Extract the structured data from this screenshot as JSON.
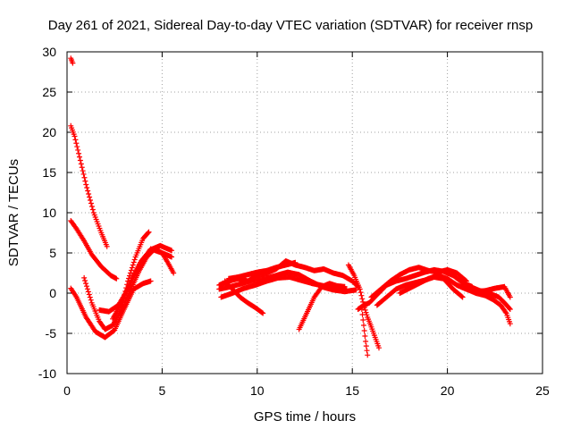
{
  "chart_data": {
    "type": "scatter",
    "title": "Day 261 of 2021, Sidereal Day-to-day VTEC variation (SDTVAR) for receiver rnsp",
    "xlabel": "GPS time / hours",
    "ylabel": "SDTVAR / TECUs",
    "xlim": [
      0,
      25
    ],
    "ylim": [
      -10,
      30
    ],
    "xticks": [
      0,
      5,
      10,
      15,
      20,
      25
    ],
    "yticks": [
      -10,
      -5,
      0,
      5,
      10,
      15,
      20,
      25,
      30
    ],
    "grid": true,
    "marker": "+",
    "color": "#ff0000",
    "series": [
      {
        "name": "s1",
        "x": [
          0.2,
          0.3
        ],
        "y": [
          29.2,
          28.6
        ]
      },
      {
        "name": "s2",
        "x": [
          0.2,
          0.4,
          0.7,
          1.0,
          1.4,
          1.8,
          2.1
        ],
        "y": [
          20.8,
          19.5,
          16.5,
          13.5,
          10.0,
          7.5,
          5.8
        ]
      },
      {
        "name": "s3",
        "x": [
          0.2,
          0.5,
          0.9,
          1.3,
          1.8,
          2.3,
          2.6
        ],
        "y": [
          9.0,
          8.0,
          6.5,
          4.8,
          3.3,
          2.2,
          1.8
        ]
      },
      {
        "name": "s4",
        "x": [
          0.2,
          0.5,
          1.0,
          1.5,
          2.0,
          2.5,
          3.0,
          3.5,
          4.0,
          4.4
        ],
        "y": [
          0.6,
          -0.5,
          -3.0,
          -4.8,
          -5.5,
          -4.6,
          -2.0,
          0.5,
          1.2,
          1.5
        ]
      },
      {
        "name": "s5",
        "x": [
          0.9,
          1.3,
          1.7,
          2.0,
          2.4,
          2.8,
          3.2,
          3.6,
          4.0,
          4.3
        ],
        "y": [
          1.9,
          -1.2,
          -3.5,
          -4.5,
          -4.0,
          -2.3,
          1.5,
          4.5,
          6.8,
          7.6
        ]
      },
      {
        "name": "s6",
        "x": [
          1.7,
          2.2,
          2.7,
          3.2,
          3.8,
          4.4,
          5.0,
          5.5
        ],
        "y": [
          -2.1,
          -2.3,
          -1.5,
          0.5,
          3.5,
          5.5,
          5.0,
          4.5
        ]
      },
      {
        "name": "s7",
        "x": [
          2.4,
          2.9,
          3.4,
          3.9,
          4.4,
          4.9,
          5.5
        ],
        "y": [
          -3.2,
          -1.0,
          1.8,
          4.0,
          5.4,
          5.9,
          5.3
        ]
      },
      {
        "name": "s8",
        "x": [
          2.8,
          3.3,
          3.8,
          4.2,
          4.6,
          5.0,
          5.3,
          5.6
        ],
        "y": [
          -2.5,
          0.2,
          2.8,
          4.5,
          5.5,
          5.0,
          3.8,
          2.5
        ]
      },
      {
        "name": "s9",
        "x": [
          8.0,
          8.5,
          9.0,
          9.5,
          10.0,
          10.5,
          11.0,
          11.5,
          12.0,
          12.5,
          13.0,
          13.5,
          14.0,
          14.5,
          15.0,
          15.3
        ],
        "y": [
          1.0,
          1.5,
          1.8,
          1.5,
          2.2,
          2.5,
          3.0,
          4.0,
          3.5,
          3.2,
          2.8,
          3.0,
          2.5,
          2.2,
          1.5,
          0.8
        ]
      },
      {
        "name": "s10",
        "x": [
          8.0,
          8.6,
          9.2,
          9.8,
          10.4,
          11.0,
          11.6,
          12.2,
          12.8,
          13.4,
          14.0,
          14.6,
          15.2
        ],
        "y": [
          0.5,
          0.8,
          1.2,
          1.6,
          1.8,
          2.2,
          2.6,
          2.3,
          1.5,
          0.8,
          0.4,
          0.2,
          0.4
        ]
      },
      {
        "name": "s11",
        "x": [
          8.1,
          8.7,
          9.3,
          9.9,
          10.5,
          11.1,
          11.7,
          12.3,
          12.9,
          13.5,
          14.1,
          14.7
        ],
        "y": [
          -0.5,
          0.0,
          0.6,
          1.0,
          1.5,
          1.9,
          2.0,
          1.6,
          1.2,
          0.9,
          0.6,
          0.4
        ]
      },
      {
        "name": "s12",
        "x": [
          8.3,
          8.7,
          9.1,
          9.5,
          9.9,
          10.3
        ],
        "y": [
          1.5,
          0.5,
          -0.5,
          -1.2,
          -1.8,
          -2.5
        ]
      },
      {
        "name": "s13",
        "x": [
          8.5,
          9.0,
          9.5,
          10.0,
          10.5,
          11.0,
          11.5,
          12.0
        ],
        "y": [
          1.8,
          2.0,
          2.3,
          2.6,
          2.8,
          3.2,
          3.5,
          3.8
        ]
      },
      {
        "name": "s14",
        "x": [
          12.2,
          12.6,
          13.0,
          13.4,
          13.8,
          14.2,
          14.6
        ],
        "y": [
          -4.5,
          -2.5,
          -0.5,
          0.8,
          1.2,
          0.9,
          0.8
        ]
      },
      {
        "name": "s15",
        "x": [
          14.8,
          15.1,
          15.4,
          15.6,
          15.8,
          16.0,
          16.2,
          16.4
        ],
        "y": [
          3.5,
          2.2,
          0.5,
          -1.5,
          -3.0,
          -4.2,
          -5.5,
          -6.8
        ]
      },
      {
        "name": "s16",
        "x": [
          15.5,
          15.6,
          15.7,
          15.8
        ],
        "y": [
          -2.0,
          -4.0,
          -6.0,
          -7.7
        ]
      },
      {
        "name": "s17",
        "x": [
          15.3,
          15.6,
          15.9,
          16.3,
          16.8,
          17.3,
          17.8,
          18.3,
          18.8,
          19.3,
          19.8,
          20.3,
          20.8,
          21.3
        ],
        "y": [
          -2.0,
          -1.5,
          -1.2,
          -0.2,
          1.0,
          1.5,
          1.8,
          2.2,
          2.6,
          2.9,
          2.7,
          2.2,
          1.3,
          0.8
        ]
      },
      {
        "name": "s18",
        "x": [
          16.0,
          16.5,
          17.0,
          17.5,
          18.0,
          18.5,
          19.0,
          19.5,
          20.0,
          20.5,
          21.0
        ],
        "y": [
          -0.5,
          0.5,
          1.5,
          2.3,
          2.9,
          3.2,
          2.8,
          2.6,
          2.9,
          2.5,
          1.5
        ]
      },
      {
        "name": "s19",
        "x": [
          16.3,
          16.8,
          17.3,
          17.8,
          18.3,
          18.8,
          19.3,
          19.8,
          20.3,
          20.8
        ],
        "y": [
          -1.5,
          -0.5,
          0.5,
          1.0,
          1.3,
          1.6,
          2.0,
          1.8,
          0.5,
          -0.5
        ]
      },
      {
        "name": "s20",
        "x": [
          17.5,
          18.0,
          18.5,
          19.0,
          19.5,
          20.0,
          20.5,
          21.0,
          21.5,
          22.0,
          22.5,
          23.0,
          23.3
        ],
        "y": [
          0.0,
          0.6,
          1.2,
          1.8,
          2.2,
          1.8,
          1.0,
          0.5,
          0.2,
          0.3,
          0.6,
          0.8,
          -0.5
        ]
      },
      {
        "name": "s21",
        "x": [
          20.5,
          21.0,
          21.5,
          22.0,
          22.4,
          22.8,
          23.1,
          23.3
        ],
        "y": [
          1.0,
          0.5,
          0.0,
          -0.3,
          -0.8,
          -1.5,
          -2.5,
          -3.8
        ]
      },
      {
        "name": "s22",
        "x": [
          21.2,
          21.7,
          22.2,
          22.7,
          23.0,
          23.3
        ],
        "y": [
          0.8,
          0.3,
          0.0,
          -0.5,
          -1.2,
          -2.0
        ]
      }
    ]
  }
}
